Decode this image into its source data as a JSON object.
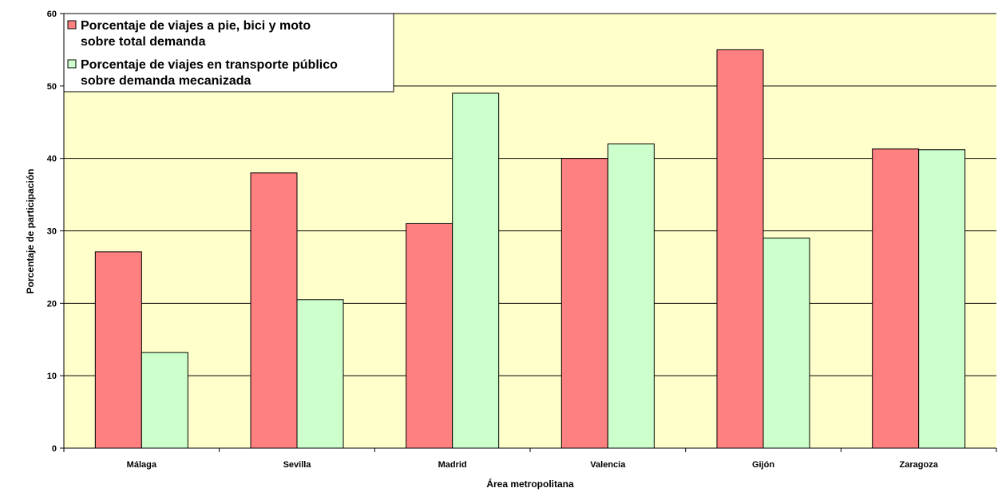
{
  "chart_data": {
    "type": "bar",
    "categories": [
      "Málaga",
      "Sevilla",
      "Madrid",
      "Valencia",
      "Gijón",
      "Zaragoza"
    ],
    "series": [
      {
        "name": "Porcentaje de viajes a pie, bici y moto sobre total demanda",
        "name_lines": [
          "Porcentaje de viajes a pie, bici y moto",
          "sobre total demanda"
        ],
        "values": [
          27.1,
          38,
          31,
          40,
          55,
          41.3
        ],
        "color": "#ff8080"
      },
      {
        "name": "Porcentaje de viajes en transporte público sobre demanda mecanizada",
        "name_lines": [
          "Porcentaje de viajes en transporte público",
          "sobre demanda mecanizada"
        ],
        "values": [
          13.2,
          20.5,
          49,
          42,
          29,
          41.2
        ],
        "color": "#ccffcc"
      }
    ],
    "xlabel": "Área metropolitana",
    "ylabel": "Porcentaje de participación",
    "ylim": [
      0,
      60
    ],
    "yticks": [
      0,
      10,
      20,
      30,
      40,
      50,
      60
    ],
    "grid": true,
    "legend_position": "top-left",
    "plot_background": "#ffffcc"
  }
}
